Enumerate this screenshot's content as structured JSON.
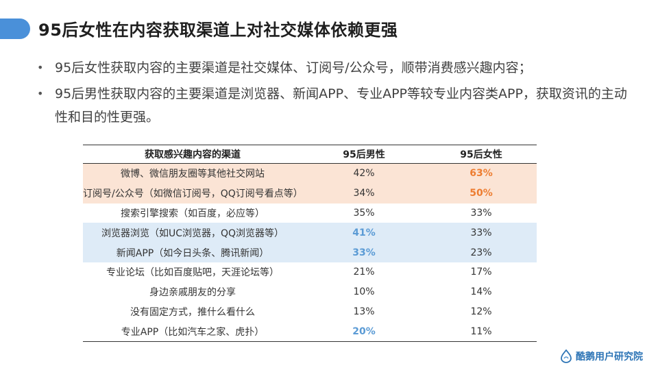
{
  "slide": {
    "title": "95后女性在内容获取渠道上对社交媒体依赖更强",
    "bullets": [
      "95后女性获取内容的主要渠道是社交媒体、订阅号/公众号，顺带消费感兴趣内容；",
      "95后男性获取内容的主要渠道是浏览器、新闻APP、专业APP等较专业内容类APP，获取资讯的主动性和目的性更强。"
    ]
  },
  "table": {
    "headers": [
      "获取感兴趣内容的渠道",
      "95后男性",
      "95后女性"
    ],
    "rows": [
      {
        "channel": "微博、微信朋友圈等其他社交网站",
        "male": "42%",
        "female": "63%",
        "highlight": "orange",
        "emphasis": "female"
      },
      {
        "channel": "订阅号/公众号（如微信订阅号，QQ订阅号看点等）",
        "male": "34%",
        "female": "50%",
        "highlight": "orange",
        "emphasis": "female"
      },
      {
        "channel": "搜索引擎搜索（如百度，必应等）",
        "male": "35%",
        "female": "33%",
        "highlight": "none",
        "emphasis": "none"
      },
      {
        "channel": "浏览器浏览（如UC浏览器，QQ浏览器等）",
        "male": "41%",
        "female": "33%",
        "highlight": "blue",
        "emphasis": "male"
      },
      {
        "channel": "新闻APP（如今日头条、腾讯新闻）",
        "male": "33%",
        "female": "23%",
        "highlight": "blue",
        "emphasis": "male"
      },
      {
        "channel": "专业论坛（比如百度贴吧，天涯论坛等）",
        "male": "21%",
        "female": "17%",
        "highlight": "none",
        "emphasis": "none"
      },
      {
        "channel": "身边亲戚朋友的分享",
        "male": "10%",
        "female": "14%",
        "highlight": "none",
        "emphasis": "none"
      },
      {
        "channel": "没有固定方式，推什么看什么",
        "male": "13%",
        "female": "12%",
        "highlight": "none",
        "emphasis": "none"
      },
      {
        "channel": "专业APP（比如汽车之家、虎扑）",
        "male": "20%",
        "female": "11%",
        "highlight": "none",
        "emphasis": "male"
      }
    ]
  },
  "colors": {
    "accent_blue": "#4a90d9",
    "highlight_orange_bg": "#fbe4d5",
    "highlight_blue_bg": "#deebf7",
    "emphasis_orange": "#ed7d31",
    "emphasis_blue": "#5b9bd5"
  },
  "footer": {
    "logo_text": "酷鹅用户研究院",
    "logo_icon": "penguin-drop-icon"
  }
}
